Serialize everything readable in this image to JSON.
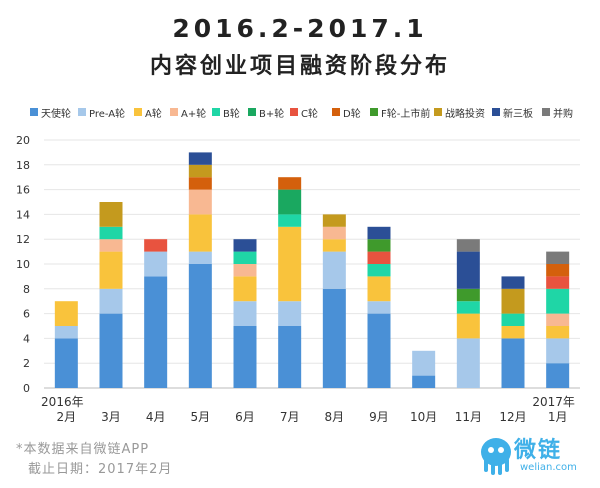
{
  "page": {
    "title_line1": "2016.2-2017.1",
    "title_line2": "内容创业项目融资阶段分布",
    "note_source": "*本数据来自微链APP",
    "note_date": "截止日期：2017年2月",
    "logo_text": "微链",
    "logo_sub": "welian.com"
  },
  "colors": {
    "天使轮": "#4a90d6",
    "Pre-A轮": "#a6c8ea",
    "A轮": "#f9c33c",
    "A+轮": "#f8b892",
    "B轮": "#1fd6a6",
    "B+轮": "#1aa860",
    "C轮": "#e8533f",
    "D轮": "#d4600c",
    "F轮-上市前": "#3f9a2c",
    "战略投资": "#c49a1e",
    "新三板": "#2b4f96",
    "并购": "#7a7a7a"
  },
  "chart_data": {
    "type": "bar",
    "stacked": true,
    "title": "2016.2-2017.1 内容创业项目融资阶段分布",
    "categories": [
      "2016年 2月",
      "3月",
      "4月",
      "5月",
      "6月",
      "7月",
      "8月",
      "9月",
      "10月",
      "11月",
      "12月",
      "2017年 1月"
    ],
    "category_labels": [
      {
        "line1": "2016年",
        "line2": "2月"
      },
      {
        "line1": "",
        "line2": "3月"
      },
      {
        "line1": "",
        "line2": "4月"
      },
      {
        "line1": "",
        "line2": "5月"
      },
      {
        "line1": "",
        "line2": "6月"
      },
      {
        "line1": "",
        "line2": "7月"
      },
      {
        "line1": "",
        "line2": "8月"
      },
      {
        "line1": "",
        "line2": "9月"
      },
      {
        "line1": "",
        "line2": "10月"
      },
      {
        "line1": "",
        "line2": "11月"
      },
      {
        "line1": "",
        "line2": "12月"
      },
      {
        "line1": "2017年",
        "line2": "1月"
      }
    ],
    "series": [
      {
        "name": "天使轮",
        "values": [
          4,
          6,
          9,
          10,
          5,
          5,
          8,
          6,
          1,
          0,
          4,
          2
        ]
      },
      {
        "name": "Pre-A轮",
        "values": [
          1,
          2,
          2,
          1,
          2,
          2,
          3,
          1,
          2,
          4,
          0,
          2
        ]
      },
      {
        "name": "A轮",
        "values": [
          2,
          3,
          0,
          3,
          2,
          6,
          1,
          2,
          0,
          2,
          1,
          1
        ]
      },
      {
        "name": "A+轮",
        "values": [
          0,
          1,
          0,
          2,
          1,
          0,
          1,
          0,
          0,
          0,
          0,
          1
        ]
      },
      {
        "name": "B轮",
        "values": [
          0,
          1,
          0,
          0,
          1,
          1,
          0,
          1,
          0,
          1,
          1,
          2
        ]
      },
      {
        "name": "B+轮",
        "values": [
          0,
          0,
          0,
          0,
          0,
          2,
          0,
          0,
          0,
          0,
          0,
          0
        ]
      },
      {
        "name": "C轮",
        "values": [
          0,
          0,
          1,
          0,
          0,
          0,
          0,
          1,
          0,
          0,
          0,
          1
        ]
      },
      {
        "name": "D轮",
        "values": [
          0,
          0,
          0,
          1,
          0,
          1,
          0,
          0,
          0,
          0,
          0,
          1
        ]
      },
      {
        "name": "F轮-上市前",
        "values": [
          0,
          0,
          0,
          0,
          0,
          0,
          0,
          1,
          0,
          1,
          0,
          0
        ]
      },
      {
        "name": "战略投资",
        "values": [
          0,
          2,
          0,
          1,
          0,
          0,
          1,
          0,
          0,
          0,
          2,
          0
        ]
      },
      {
        "name": "新三板",
        "values": [
          0,
          0,
          0,
          1,
          1,
          0,
          0,
          1,
          0,
          3,
          1,
          0
        ]
      },
      {
        "name": "并购",
        "values": [
          0,
          0,
          0,
          0,
          0,
          0,
          0,
          0,
          0,
          1,
          0,
          1
        ]
      }
    ],
    "yticks": [
      0,
      2,
      4,
      6,
      8,
      10,
      12,
      14,
      16,
      18,
      20
    ],
    "ylim": [
      0,
      20
    ],
    "grid": true,
    "legend": "top"
  }
}
